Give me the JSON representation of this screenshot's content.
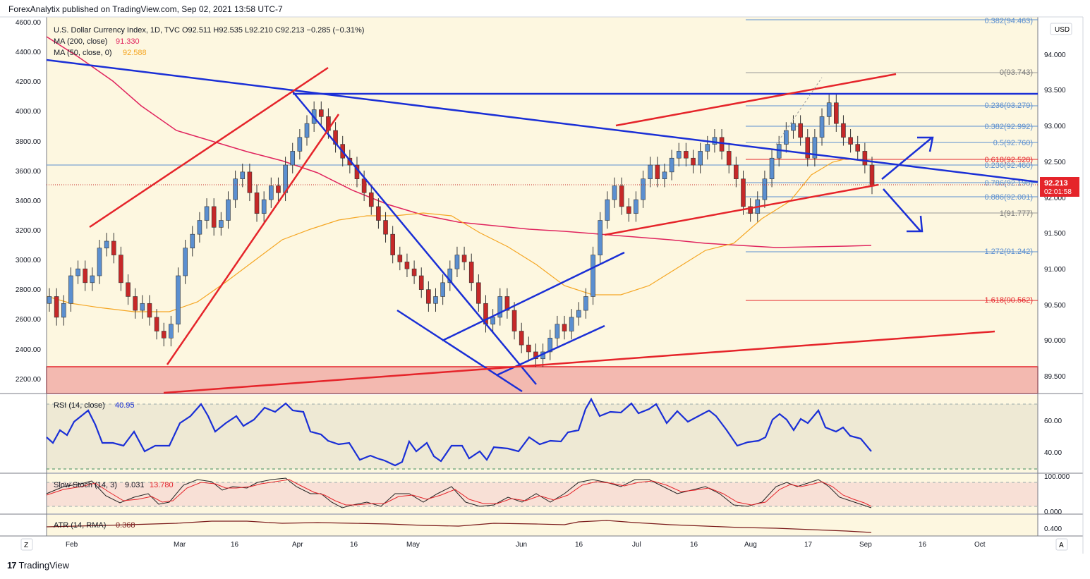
{
  "header": {
    "published": "ForexAnalytix published on TradingView.com, Sep 02, 2021 13:58 UTC-7"
  },
  "footer": {
    "brand": "TradingView"
  },
  "colors": {
    "background": "#fdf7e0",
    "blue": "#1a2fd6",
    "red": "#e5242a",
    "ma200": "#e0245e",
    "ma50": "#f5a623",
    "candle_up": "#5b8fd0",
    "candle_down": "#c62828"
  },
  "legend": {
    "line1": "U.S. Dollar Currency Index, 1D, TVC  O92.511  H92.535  L92.210  C92.213  −0.285 (−0.31%)",
    "ma200_label": "MA (200, close)",
    "ma200_value": "91.330",
    "ma50_label": "MA (50, close, 0)",
    "ma50_value": "92.588"
  },
  "currency": "USD",
  "price_badge": {
    "value": "92.213",
    "time": "02:01:58"
  },
  "left_axis": [
    "4600.00",
    "4400.00",
    "4200.00",
    "4000.00",
    "3800.00",
    "3600.00",
    "3400.00",
    "3200.00",
    "3000.00",
    "2800.00",
    "2600.00",
    "2400.00",
    "2200.00"
  ],
  "right_axis": [
    "94.000",
    "93.500",
    "93.000",
    "92.500",
    "92.000",
    "91.500",
    "91.000",
    "90.500",
    "90.000",
    "89.500"
  ],
  "x_axis": [
    "Feb",
    "Mar",
    "16",
    "Apr",
    "16",
    "May",
    "Jun",
    "16",
    "Jul",
    "16",
    "Aug",
    "17",
    "Sep",
    "16",
    "Oct"
  ],
  "fib_levels": [
    {
      "label": "0.382(94.463)",
      "color": "#5b8fd0"
    },
    {
      "label": "0(93.743)",
      "color": "#888888"
    },
    {
      "label": "0.236(93.279)",
      "color": "#5b8fd0"
    },
    {
      "label": "0.382(92.992)",
      "color": "#5b8fd0"
    },
    {
      "label": "0.5(92.760)",
      "color": "#5b8fd0"
    },
    {
      "label": "0.618(92.528)",
      "color": "#e5242a"
    },
    {
      "label": "0.236(92.460)",
      "color": "#5b8fd0"
    },
    {
      "label": "0.786(92.198)",
      "color": "#5b8fd0"
    },
    {
      "label": "0.886(92.001)",
      "color": "#5b8fd0"
    },
    {
      "label": "1(91.777)",
      "color": "#888888"
    },
    {
      "label": "1.272(91.242)",
      "color": "#5b8fd0"
    },
    {
      "label": "1.618(90.562)",
      "color": "#e5242a"
    }
  ],
  "rsi": {
    "label": "RSI (14, close)",
    "value": "40.95",
    "axis": [
      "60.00",
      "40.00"
    ]
  },
  "stoch": {
    "label": "Slow Stoch (14, 3)",
    "k": "9.031",
    "d": "13.780",
    "axis": [
      "100.000",
      "0.000"
    ]
  },
  "atr": {
    "label": "ATR (14, RMA)",
    "value": "0.368",
    "axis": [
      "0.400"
    ]
  },
  "corner_left": "Z",
  "corner_right": "A",
  "chart_data": {
    "type": "candlestick",
    "title": "U.S. Dollar Currency Index, 1D, TVC",
    "ylim": [
      89.3,
      94.6
    ],
    "close": [
      90.6,
      90.3,
      90.5,
      90.9,
      91.0,
      90.8,
      90.9,
      91.3,
      91.4,
      91.2,
      90.8,
      90.6,
      90.4,
      90.5,
      90.3,
      90.1,
      90.0,
      90.2,
      90.9,
      91.3,
      91.5,
      91.7,
      91.9,
      91.6,
      91.7,
      92.0,
      92.3,
      92.4,
      92.1,
      91.8,
      92.0,
      92.2,
      92.1,
      92.5,
      92.7,
      92.9,
      93.1,
      93.3,
      93.2,
      93.0,
      92.8,
      92.6,
      92.5,
      92.3,
      92.1,
      91.9,
      91.7,
      91.5,
      91.2,
      91.1,
      91.0,
      90.9,
      90.7,
      90.5,
      90.6,
      90.8,
      91.0,
      91.2,
      91.1,
      90.8,
      90.5,
      90.2,
      90.3,
      90.6,
      90.4,
      90.1,
      89.9,
      89.8,
      89.7,
      89.8,
      90.0,
      90.2,
      90.1,
      90.3,
      90.4,
      90.6,
      91.2,
      91.7,
      92.0,
      92.2,
      91.9,
      91.8,
      92.0,
      92.3,
      92.5,
      92.3,
      92.4,
      92.6,
      92.7,
      92.6,
      92.5,
      92.7,
      92.8,
      92.9,
      92.7,
      92.5,
      92.3,
      91.9,
      91.8,
      92.0,
      92.3,
      92.6,
      92.8,
      93.0,
      93.1,
      92.9,
      92.6,
      92.9,
      93.2,
      93.4,
      93.1,
      92.9,
      92.8,
      92.7,
      92.5,
      92.2
    ]
  }
}
